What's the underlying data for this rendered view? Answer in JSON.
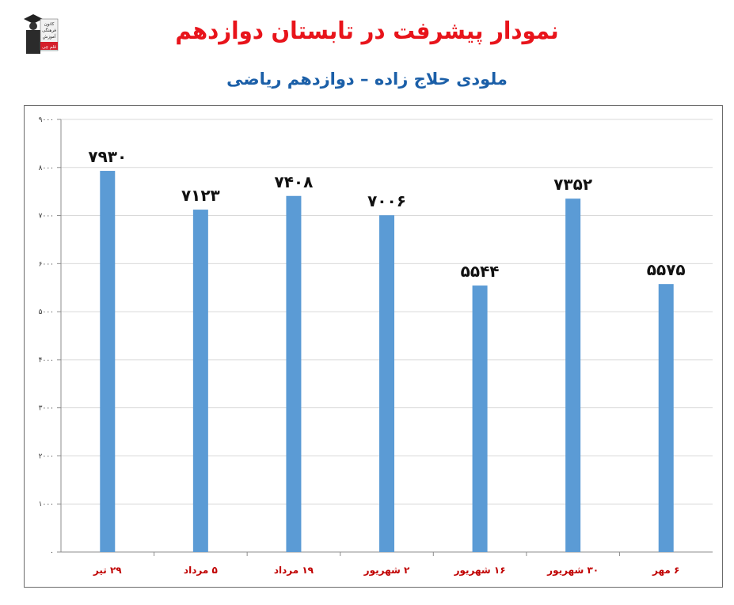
{
  "header": {
    "title": "نمودار پیشرفت در تابستان دوازدهم",
    "subtitle": "ملودی حلاج زاده – دوازدهم ریاضی",
    "logo": {
      "lines": [
        "کانون",
        "فرهنگی",
        "آموزش",
        "قلم چی"
      ],
      "icon": "graduate-figure-icon"
    }
  },
  "colors": {
    "title": "#e8141b",
    "subtitle": "#1b5fa8",
    "bar": "#5b9bd5",
    "category_label": "#c00000",
    "gridline": "#d9d9d9"
  },
  "chart_data": {
    "type": "bar",
    "title": "",
    "xlabel": "",
    "ylabel": "",
    "ylim": [
      0,
      9000
    ],
    "yticks": [
      0,
      1000,
      2000,
      3000,
      4000,
      5000,
      6000,
      7000,
      8000,
      9000
    ],
    "ytick_labels": [
      "۰",
      "۱۰۰۰",
      "۲۰۰۰",
      "۳۰۰۰",
      "۴۰۰۰",
      "۵۰۰۰",
      "۶۰۰۰",
      "۷۰۰۰",
      "۸۰۰۰",
      "۹۰۰۰"
    ],
    "grid": true,
    "legend": "none",
    "categories": [
      "۲۹ تیر",
      "۵ مرداد",
      "۱۹ مرداد",
      "۲ شهریور",
      "۱۶ شهریور",
      "۳۰ شهریور",
      "۶ مهر"
    ],
    "values": [
      7930,
      7123,
      7408,
      7006,
      5544,
      7352,
      5575
    ],
    "data_labels": [
      "۷۹۳۰",
      "۷۱۲۳",
      "۷۴۰۸",
      "۷۰۰۶",
      "۵۵۴۴",
      "۷۳۵۲",
      "۵۵۷۵"
    ]
  }
}
